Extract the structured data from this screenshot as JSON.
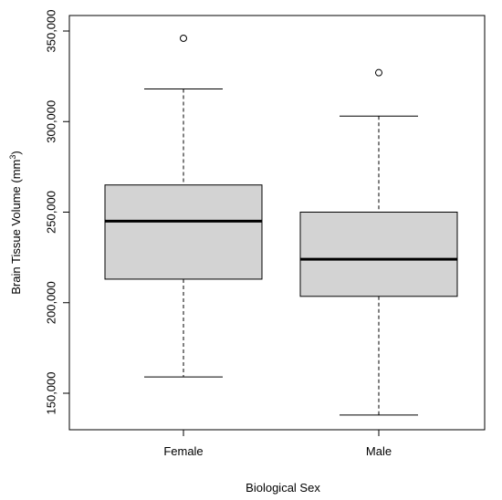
{
  "chart_data": {
    "type": "boxplot",
    "xlabel": "Biological Sex",
    "ylabel": "Brain Tissue Volume (mm",
    "ylabel_superscript": "3",
    "ylabel_suffix": ")",
    "ylim": [
      130000,
      352000
    ],
    "yticks": [
      150000,
      200000,
      250000,
      300000,
      350000
    ],
    "ytick_labels": [
      "150,000",
      "200,000",
      "250,000",
      "300,000",
      "350,000"
    ],
    "box_fill": "#d3d3d3",
    "stroke": "#000000",
    "groups": [
      {
        "label": "Female",
        "whisker_low": 159000,
        "q1": 213000,
        "median": 245000,
        "q3": 265000,
        "whisker_high": 318000,
        "outliers": [
          346000
        ]
      },
      {
        "label": "Male",
        "whisker_low": 138000,
        "q1": 203500,
        "median": 224000,
        "q3": 250000,
        "whisker_high": 303000,
        "outliers": [
          327000
        ]
      }
    ]
  }
}
